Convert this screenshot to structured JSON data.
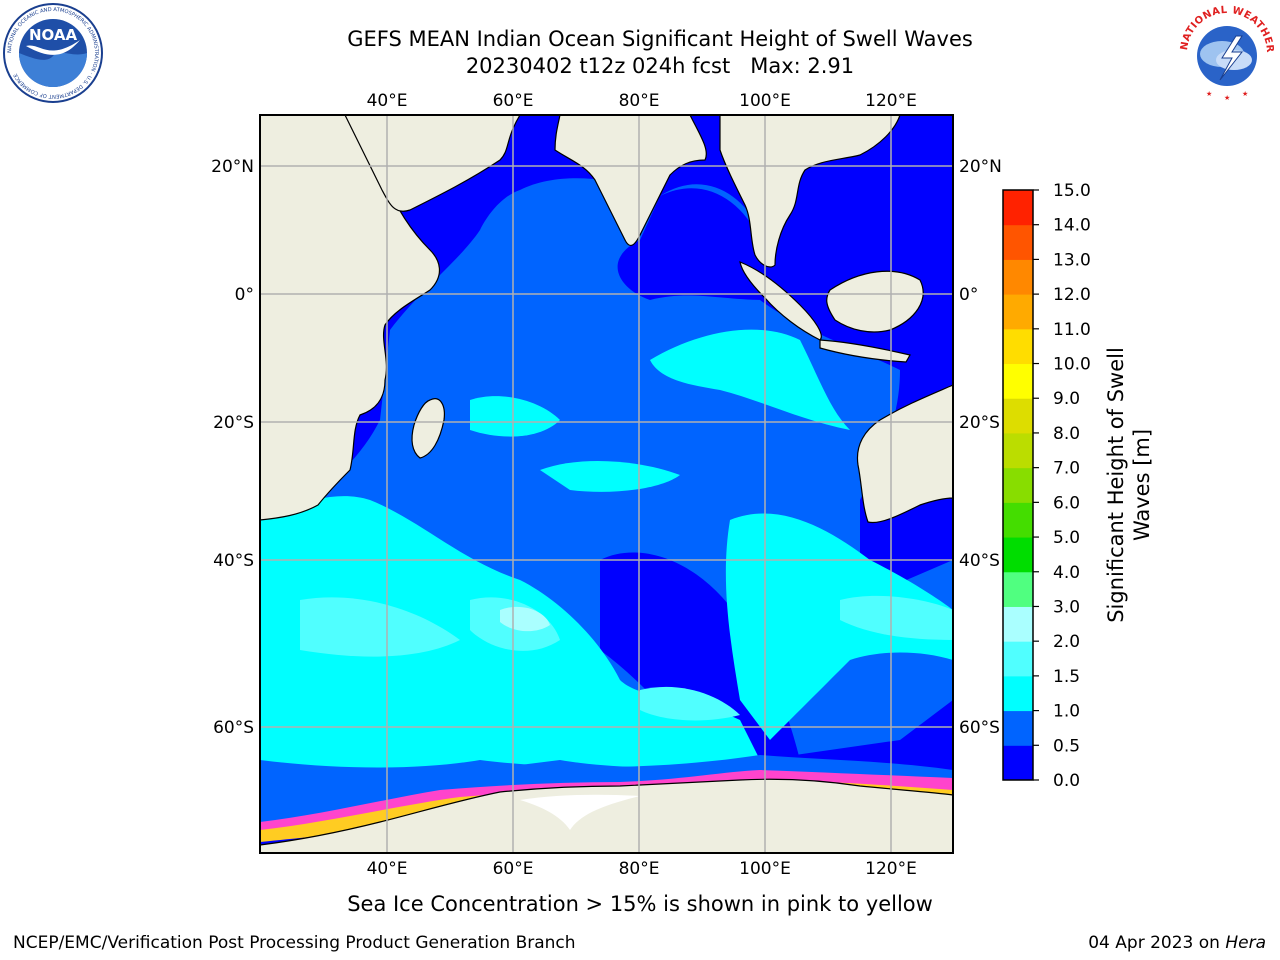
{
  "title": {
    "line1": "GEFS MEAN Indian Ocean Significant Height of Swell Waves",
    "line2": "20230402 t12z 024h fcst   Max: 2.91"
  },
  "map": {
    "lon_labels": [
      "40°E",
      "60°E",
      "80°E",
      "100°E",
      "120°E"
    ],
    "lat_labels": [
      "20°N",
      "0°",
      "20°S",
      "40°S",
      "60°S"
    ],
    "lon_range": [
      20,
      130
    ],
    "lat_range": [
      -74,
      28
    ],
    "colors": {
      "ocean_low": "#0000ff",
      "ocean_mid": "#0064ff",
      "ocean_swell": "#00ffff",
      "ocean_swell_high": "#50ffff",
      "land": "#eeeee0",
      "ice_edge": "#ff44cc",
      "ice_inner": "#ffcc22",
      "grid": "#b0b0b0"
    }
  },
  "colorbar": {
    "title_line1": "Significant Height of Swell",
    "title_line2": "Waves [m]",
    "tick_labels": [
      "0.0",
      "0.5",
      "1.0",
      "1.5",
      "2.0",
      "3.0",
      "4.0",
      "5.0",
      "6.0",
      "7.0",
      "8.0",
      "9.0",
      "10.0",
      "11.0",
      "12.0",
      "13.0",
      "14.0",
      "15.0"
    ],
    "bin_colors": [
      "#0000ff",
      "#0064ff",
      "#00ffff",
      "#50ffff",
      "#aaffff",
      "#50ff80",
      "#00dd00",
      "#44dd00",
      "#88dd00",
      "#bbdd00",
      "#dddd00",
      "#ffff00",
      "#ffdd00",
      "#ffaa00",
      "#ff8800",
      "#ff5500",
      "#ff2200"
    ]
  },
  "ice_note": "Sea Ice Concentration > 15% is shown in pink to yellow",
  "footer": {
    "left": "NCEP/EMC/Verification Post Processing Product Generation Branch",
    "right_date": "04 Apr 2023 on ",
    "right_host": "Hera"
  },
  "logos": {
    "noaa": {
      "text": "NOAA",
      "ring_text": "NATIONAL OCEANIC AND ATMOSPHERIC ADMINISTRATION · U.S. DEPARTMENT OF COMMERCE"
    },
    "nws": {
      "ring_text": "NATIONAL WEATHER SERVICE"
    }
  }
}
